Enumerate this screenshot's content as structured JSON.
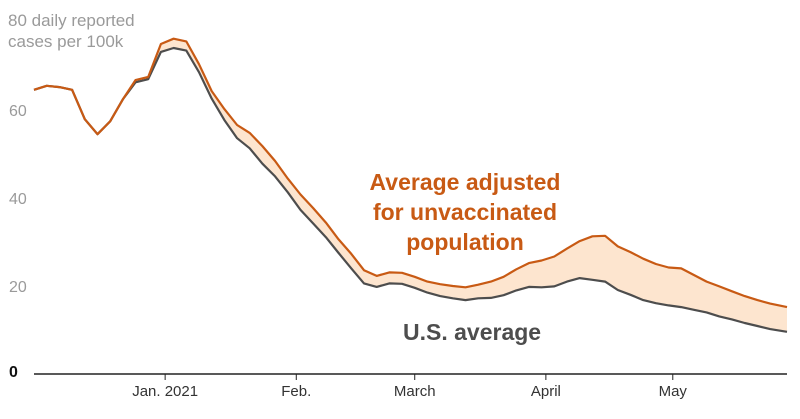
{
  "chart_data": {
    "type": "area",
    "ylabel": "80 daily reported\ncases per 100k",
    "ylim": [
      0,
      80
    ],
    "xlim": [
      "2020-12-01",
      "2021-05-28"
    ],
    "grid": false,
    "y_ticks": [
      {
        "value": 0,
        "label": "0"
      },
      {
        "value": 20,
        "label": "20"
      },
      {
        "value": 40,
        "label": "40"
      },
      {
        "value": 60,
        "label": "60"
      }
    ],
    "x_ticks": [
      {
        "date": "2021-01-01",
        "label": "Jan. 2021"
      },
      {
        "date": "2021-02-01",
        "label": "Feb."
      },
      {
        "date": "2021-03-01",
        "label": "March"
      },
      {
        "date": "2021-04-01",
        "label": "April"
      },
      {
        "date": "2021-05-01",
        "label": "May"
      }
    ],
    "x": [
      "2020-12-01",
      "2020-12-04",
      "2020-12-07",
      "2020-12-10",
      "2020-12-13",
      "2020-12-16",
      "2020-12-19",
      "2020-12-22",
      "2020-12-25",
      "2020-12-28",
      "2020-12-31",
      "2021-01-03",
      "2021-01-06",
      "2021-01-09",
      "2021-01-12",
      "2021-01-15",
      "2021-01-18",
      "2021-01-21",
      "2021-01-24",
      "2021-01-27",
      "2021-01-30",
      "2021-02-02",
      "2021-02-05",
      "2021-02-08",
      "2021-02-11",
      "2021-02-14",
      "2021-02-17",
      "2021-02-20",
      "2021-02-23",
      "2021-02-26",
      "2021-03-01",
      "2021-03-04",
      "2021-03-07",
      "2021-03-10",
      "2021-03-13",
      "2021-03-16",
      "2021-03-19",
      "2021-03-22",
      "2021-03-25",
      "2021-03-28",
      "2021-03-31",
      "2021-04-03",
      "2021-04-06",
      "2021-04-09",
      "2021-04-12",
      "2021-04-15",
      "2021-04-18",
      "2021-04-21",
      "2021-04-24",
      "2021-04-27",
      "2021-04-30",
      "2021-05-03",
      "2021-05-06",
      "2021-05-09",
      "2021-05-12",
      "2021-05-15",
      "2021-05-18",
      "2021-05-21",
      "2021-05-24",
      "2021-05-28"
    ],
    "series": [
      {
        "name": "U.S. average",
        "color": "#4d4d4d",
        "values": [
          64.6,
          65.5,
          65.2,
          64.6,
          57.9,
          54.5,
          57.4,
          62.4,
          66.3,
          67.0,
          73.2,
          74.1,
          73.5,
          68.6,
          62.6,
          57.7,
          53.6,
          51.3,
          47.8,
          44.9,
          41.3,
          37.3,
          34.2,
          31.1,
          27.5,
          24.0,
          20.6,
          19.8,
          20.6,
          20.5,
          19.6,
          18.5,
          17.7,
          17.2,
          16.8,
          17.2,
          17.3,
          17.9,
          19.0,
          19.8,
          19.7,
          19.9,
          21.0,
          21.8,
          21.4,
          21.0,
          19.1,
          18.0,
          16.8,
          16.1,
          15.6,
          15.2,
          14.6,
          14.0,
          13.1,
          12.4,
          11.6,
          10.9,
          10.2,
          9.6
        ]
      },
      {
        "name": "Average adjusted for unvaccinated population",
        "color": "#c85a14",
        "values": [
          64.6,
          65.5,
          65.2,
          64.6,
          57.9,
          54.5,
          57.4,
          62.4,
          66.8,
          67.5,
          75.0,
          76.2,
          75.6,
          70.4,
          64.3,
          60.2,
          56.6,
          54.8,
          51.8,
          48.4,
          44.4,
          40.8,
          37.7,
          34.4,
          30.6,
          27.3,
          23.6,
          22.3,
          23.1,
          23.0,
          22.1,
          21.0,
          20.4,
          20.0,
          19.7,
          20.3,
          21.0,
          22.1,
          23.8,
          25.2,
          25.8,
          26.7,
          28.5,
          30.2,
          31.3,
          31.4,
          29.0,
          27.7,
          26.2,
          25.0,
          24.2,
          24.0,
          22.5,
          21.0,
          19.9,
          18.8,
          17.7,
          16.8,
          16.0,
          15.2
        ]
      }
    ],
    "annotations": [
      {
        "text": "Average adjusted\nfor unvaccinated\npopulation",
        "color": "#c85a14"
      },
      {
        "text": "U.S. average",
        "color": "#4d4d4d"
      }
    ],
    "fill_color": "#fde5cf"
  }
}
